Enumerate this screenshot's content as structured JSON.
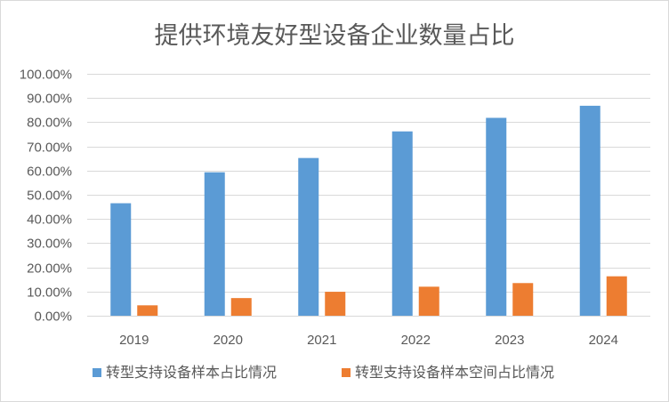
{
  "chart_data": {
    "type": "bar",
    "title": "提供环境友好型设备企业数量占比",
    "xlabel": "",
    "ylabel": "",
    "categories": [
      "2019",
      "2020",
      "2021",
      "2022",
      "2023",
      "2024"
    ],
    "series": [
      {
        "name": "转型支持设备样本占比情况",
        "color": "#5b9bd5",
        "values": [
          46.5,
          59.3,
          65.2,
          76.2,
          81.8,
          86.8
        ]
      },
      {
        "name": "转型支持设备样本空间占比情况",
        "color": "#ed7d31",
        "values": [
          4.3,
          7.3,
          9.9,
          12.0,
          13.5,
          16.3
        ]
      }
    ],
    "ylim": [
      0,
      100
    ],
    "yticks": [
      "0.00%",
      "10.00%",
      "20.00%",
      "30.00%",
      "40.00%",
      "50.00%",
      "60.00%",
      "70.00%",
      "80.00%",
      "90.00%",
      "100.00%"
    ],
    "grid": true,
    "legend_position": "bottom"
  }
}
